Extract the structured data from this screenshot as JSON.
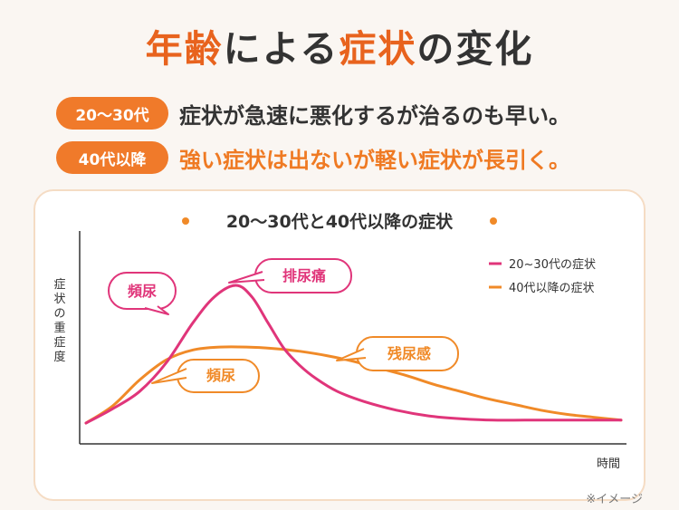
{
  "title": {
    "part1": "年齢",
    "part2": "による",
    "part3": "症状",
    "part4": "の変化"
  },
  "rows": [
    {
      "badge": "20〜30代",
      "text": "症状が急速に悪化するが治るのも早い。"
    },
    {
      "badge": "40代以降",
      "text": "強い症状は出ないが軽い症状が長引く。"
    }
  ],
  "colors": {
    "accent": "#e8631e",
    "pink": "#e0357a",
    "orange": "#f08a28",
    "badge": "#f07a2a"
  },
  "note": "※イメージ",
  "chart_data": {
    "type": "line",
    "title": "20〜30代と40代以降の症状",
    "ylabel": "症状の重症度",
    "xlabel": "時間",
    "ylim": [
      0,
      100
    ],
    "xlim": [
      0,
      100
    ],
    "legend_position": "top-right",
    "series": [
      {
        "name": "20~30代の症状",
        "color": "#e0357a",
        "x": [
          0,
          5,
          10,
          15,
          20,
          24,
          28,
          31,
          34,
          37,
          40,
          43,
          47,
          52,
          58,
          64,
          70,
          76,
          82,
          88,
          94,
          100
        ],
        "y": [
          0,
          10,
          22,
          42,
          70,
          88,
          96,
          88,
          70,
          52,
          40,
          31,
          22,
          15,
          9,
          5,
          3,
          2,
          2,
          2,
          2,
          2
        ]
      },
      {
        "name": "40代以降の症状",
        "color": "#f08a28",
        "x": [
          0,
          5,
          10,
          15,
          20,
          25,
          30,
          35,
          40,
          45,
          50,
          55,
          60,
          65,
          70,
          75,
          80,
          85,
          90,
          95,
          100
        ],
        "y": [
          0,
          12,
          30,
          44,
          51,
          53,
          53,
          52,
          50,
          47,
          43,
          38,
          33,
          27,
          22,
          17,
          13,
          9,
          6,
          4,
          2
        ]
      }
    ],
    "annotations": [
      {
        "text": "頻尿",
        "series": "20~30代の症状"
      },
      {
        "text": "排尿痛",
        "series": "20~30代の症状"
      },
      {
        "text": "頻尿",
        "series": "40代以降の症状"
      },
      {
        "text": "残尿感",
        "series": "40代以降の症状"
      }
    ]
  }
}
